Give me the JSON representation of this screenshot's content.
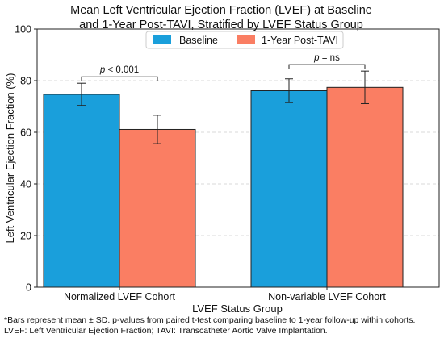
{
  "chart_data": {
    "type": "bar",
    "title_line1": "Mean Left Ventricular Ejection Fraction (LVEF) at Baseline",
    "title_line2": "and 1-Year Post-TAVI, Stratified by LVEF Status Group",
    "xlabel": "LVEF Status Group",
    "ylabel": "Left Ventricular Ejection Fraction (%)",
    "ylim": [
      0,
      100
    ],
    "yticks": [
      0,
      20,
      40,
      60,
      80,
      100
    ],
    "grid": "horizontal dashed",
    "legend_position": "top-center",
    "categories": [
      "Normalized LVEF Cohort",
      "Non-variable LVEF Cohort"
    ],
    "series": [
      {
        "name": "Baseline",
        "color": "#1a9fdb",
        "values": [
          74.7,
          76.1
        ],
        "sd": [
          4.3,
          4.6
        ]
      },
      {
        "name": "1-Year Post-TAVI",
        "color": "#fa7e63",
        "values": [
          61.1,
          77.4
        ],
        "sd": [
          5.5,
          6.3
        ]
      }
    ],
    "annotations": [
      {
        "category_index": 0,
        "prefix": "p",
        "text": " < 0.001"
      },
      {
        "category_index": 1,
        "prefix": "p",
        "text": " = ns"
      }
    ],
    "footnote_line1": "*Bars represent mean ± SD. p-values from paired t-test comparing baseline to 1-year follow-up within cohorts.",
    "footnote_line2": "LVEF: Left Ventricular Ejection Fraction; TAVI: Transcatheter Aortic Valve Implantation."
  }
}
